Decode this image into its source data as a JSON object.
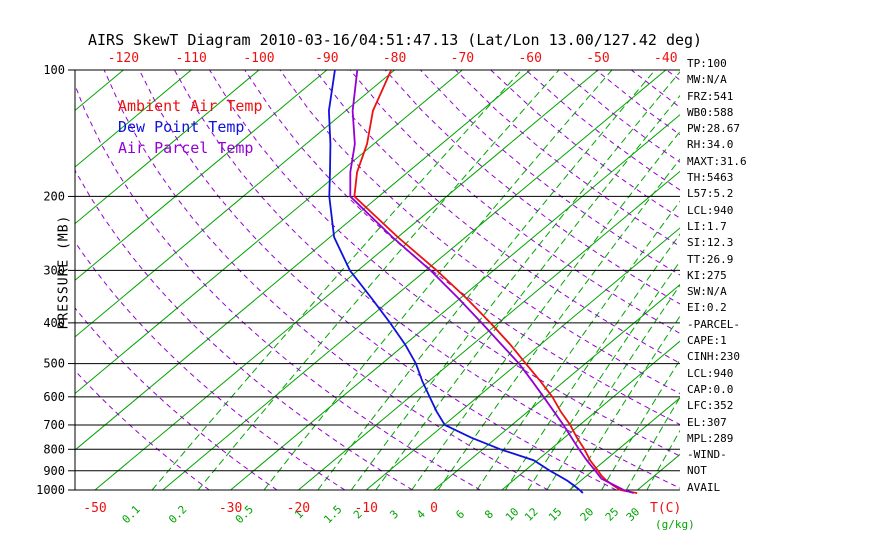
{
  "title": "AIRS SkewT Diagram 2010-03-16/04:51:47.13 (Lat/Lon 13.00/127.42 deg)",
  "colors": {
    "red": "#ee1111",
    "blue": "#1111dd",
    "purple": "#9400d3",
    "green": "#00a400",
    "black": "#000000"
  },
  "legend": [
    {
      "id": "ambient",
      "label": "Ambient Air Temp",
      "color": "#ee1111"
    },
    {
      "id": "dewpoint",
      "label": "Dew Point Temp",
      "color": "#1111dd"
    },
    {
      "id": "parcel",
      "label": "Air Parcel Temp",
      "color": "#9400d3"
    }
  ],
  "axes": {
    "pressure_label": "PRESSURE (MB)",
    "pressure_ticks": [
      100,
      200,
      300,
      400,
      500,
      600,
      700,
      800,
      900,
      1000
    ],
    "top_temp_ticks": [
      -120,
      -110,
      -100,
      -90,
      -80,
      -70,
      -60,
      -50,
      -40
    ],
    "bottom_temp_ticks": [
      -50,
      -30,
      -20,
      -10,
      0
    ],
    "temp_unit_label": "T(C)",
    "mixing_ratio_ticks": [
      0.1,
      0.2,
      0.5,
      1,
      1.5,
      2,
      3,
      4,
      6,
      8,
      10,
      12,
      15,
      20,
      25,
      30
    ],
    "mixing_ratio_unit_label": "(g/kg)"
  },
  "stats": [
    "TP:100",
    "MW:N/A",
    "FRZ:541",
    "WB0:588",
    "PW:28.67",
    "RH:34.0",
    "MAXT:31.6",
    "TH:5463",
    "L57:5.2",
    "LCL:940",
    "LI:1.7",
    "SI:12.3",
    "TT:26.9",
    "KI:275",
    "SW:N/A",
    "EI:0.2",
    "-PARCEL-",
    "CAPE:1",
    "CINH:230",
    "LCL:940",
    "CAP:0.0",
    "LFC:352",
    "EL:307",
    "MPL:289",
    "-WIND-",
    "NOT",
    "AVAIL"
  ],
  "chart_data": {
    "type": "line",
    "title": "AIRS SkewT Diagram 2010-03-16/04:51:47.13 (Lat/Lon 13.00/127.42 deg)",
    "x_axis": {
      "label": "T(C) (skewed isotherms)",
      "top_ticks": [
        -120,
        -110,
        -100,
        -90,
        -80,
        -70,
        -60,
        -50,
        -40
      ],
      "bottom_ticks": [
        -50,
        -30,
        -20,
        -10,
        0
      ]
    },
    "y_axis": {
      "label": "PRESSURE (MB)",
      "scale": "log",
      "range": [
        100,
        1000
      ],
      "inverted": true
    },
    "legend_position": "top-left-inside",
    "series": [
      {
        "id": "ambient",
        "name": "Ambient Air Temp",
        "color": "#ee1111",
        "points": [
          [
            1017,
            30.5
          ],
          [
            1000,
            27.5
          ],
          [
            975,
            25.6
          ],
          [
            950,
            23.8
          ],
          [
            925,
            22.2
          ],
          [
            900,
            20.8
          ],
          [
            850,
            17.8
          ],
          [
            800,
            15.0
          ],
          [
            750,
            11.8
          ],
          [
            700,
            8.6
          ],
          [
            650,
            4.8
          ],
          [
            600,
            1.0
          ],
          [
            550,
            -3.6
          ],
          [
            500,
            -8.8
          ],
          [
            450,
            -14.5
          ],
          [
            400,
            -21.2
          ],
          [
            350,
            -29.0
          ],
          [
            300,
            -38.4
          ],
          [
            250,
            -50.0
          ],
          [
            200,
            -63.6
          ],
          [
            175,
            -67.5
          ],
          [
            150,
            -71.0
          ],
          [
            125,
            -76.0
          ],
          [
            100,
            -80.5
          ]
        ]
      },
      {
        "id": "dewpoint",
        "name": "Dew Point Temp",
        "color": "#1111dd",
        "points": [
          [
            1017,
            22.5
          ],
          [
            1000,
            21.5
          ],
          [
            975,
            19.8
          ],
          [
            950,
            18.0
          ],
          [
            925,
            15.9
          ],
          [
            900,
            13.7
          ],
          [
            850,
            9.5
          ],
          [
            800,
            2.6
          ],
          [
            750,
            -3.8
          ],
          [
            700,
            -9.9
          ],
          [
            650,
            -13.5
          ],
          [
            600,
            -17.1
          ],
          [
            550,
            -21.0
          ],
          [
            500,
            -25.0
          ],
          [
            450,
            -30.0
          ],
          [
            400,
            -36.0
          ],
          [
            350,
            -43.0
          ],
          [
            300,
            -51.2
          ],
          [
            250,
            -59.4
          ],
          [
            200,
            -67.3
          ],
          [
            175,
            -71.5
          ],
          [
            150,
            -76.4
          ],
          [
            125,
            -82.5
          ],
          [
            100,
            -88.8
          ]
        ]
      },
      {
        "id": "parcel",
        "name": "Air Parcel Temp",
        "color": "#9400d3",
        "points": [
          [
            1017,
            30.0
          ],
          [
            1000,
            28.0
          ],
          [
            940,
            22.7
          ],
          [
            900,
            20.4
          ],
          [
            850,
            17.3
          ],
          [
            800,
            14.2
          ],
          [
            750,
            11.0
          ],
          [
            700,
            7.6
          ],
          [
            650,
            3.8
          ],
          [
            600,
            -0.3
          ],
          [
            550,
            -4.8
          ],
          [
            500,
            -9.8
          ],
          [
            450,
            -15.8
          ],
          [
            400,
            -22.5
          ],
          [
            350,
            -30.2
          ],
          [
            300,
            -39.3
          ],
          [
            250,
            -50.8
          ],
          [
            200,
            -64.2
          ],
          [
            175,
            -68.5
          ],
          [
            150,
            -72.8
          ],
          [
            125,
            -79.0
          ],
          [
            100,
            -85.5
          ]
        ]
      }
    ],
    "background": {
      "isotherms_C": {
        "min": -130,
        "max": 40,
        "step": 10
      },
      "dry_adiabats_K": {
        "min": 240,
        "max": 450,
        "step": 10
      },
      "mixing_ratio_g_kg": [
        0.1,
        0.2,
        0.5,
        1,
        1.5,
        2,
        3,
        4,
        6,
        8,
        10,
        12,
        15,
        20,
        25,
        30
      ],
      "isobars_mb": [
        100,
        200,
        300,
        400,
        500,
        600,
        700,
        800,
        900,
        1000
      ]
    }
  }
}
